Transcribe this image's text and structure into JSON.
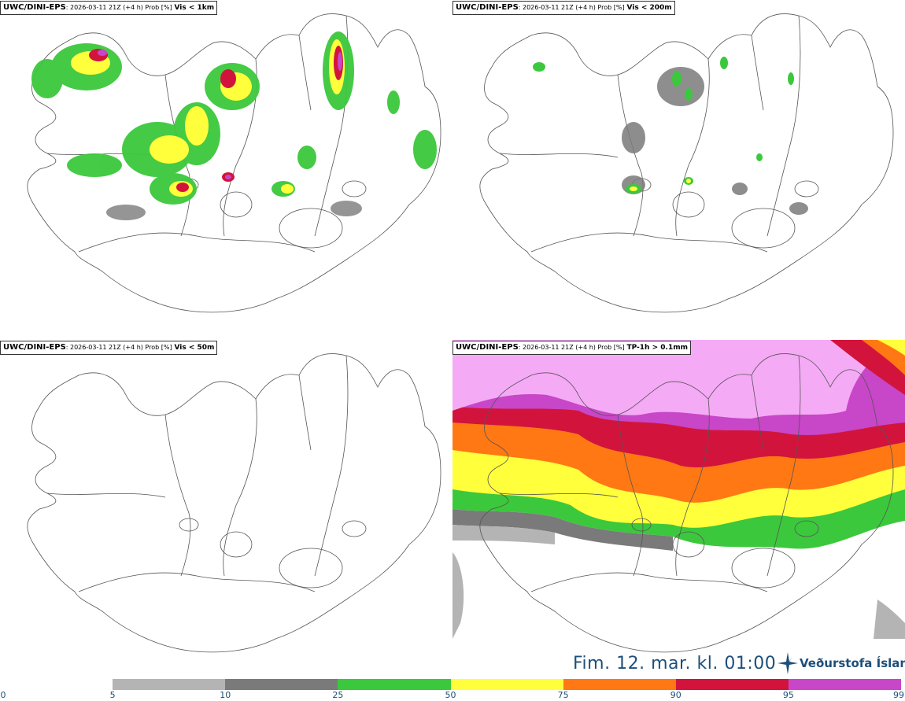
{
  "panels": [
    {
      "model": "UWC/DINI-EPS",
      "run": ": 2026-03-11 21Z (+4 h) Prob [%]",
      "field": "Vis < 1km"
    },
    {
      "model": "UWC/DINI-EPS",
      "run": ": 2026-03-11 21Z (+4 h) Prob [%]",
      "field": "Vis < 200m"
    },
    {
      "model": "UWC/DINI-EPS",
      "run": ": 2026-03-11 21Z (+4 h) Prob [%]",
      "field": "Vis < 50m"
    },
    {
      "model": "UWC/DINI-EPS",
      "run": ": 2026-03-11 21Z (+4 h) Prob [%]",
      "field": "TP-1h > 0.1mm"
    }
  ],
  "valid_time": "Fim. 12. mar. kl. 01:00",
  "logo_text": "Veðurstofa Íslands",
  "colorbar": {
    "ticks": [
      "0",
      "5",
      "10",
      "25",
      "50",
      "75",
      "90",
      "95",
      "99"
    ],
    "colors": [
      "#ffffff",
      "#b4b4b4",
      "#7a7a7a",
      "#3cc83c",
      "#ffff3c",
      "#ff7814",
      "#d2143c",
      "#c846c8",
      "#f5aaf5"
    ]
  },
  "colors": {
    "brand_blue": "#1e4f7a",
    "coast": "#555555"
  }
}
